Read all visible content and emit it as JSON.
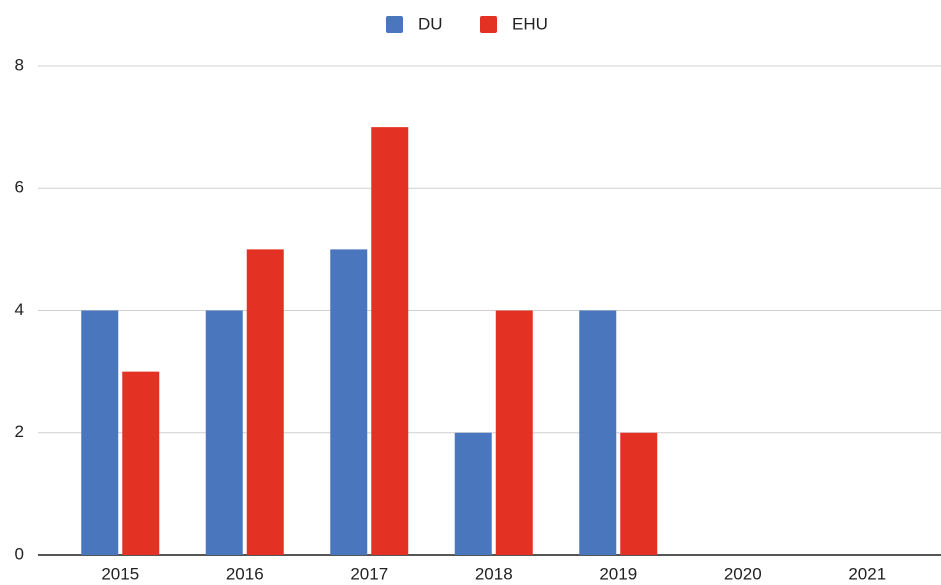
{
  "chart_data": {
    "type": "bar",
    "categories": [
      "2015",
      "2016",
      "2017",
      "2018",
      "2019",
      "2020",
      "2021"
    ],
    "series": [
      {
        "name": "DU",
        "color": "#4a76bd",
        "values": [
          4,
          4,
          5,
          2,
          4,
          null,
          null
        ]
      },
      {
        "name": "EHU",
        "color": "#e33224",
        "values": [
          3,
          5,
          7,
          4,
          2,
          null,
          null
        ]
      }
    ],
    "ylim": [
      0,
      8
    ],
    "yticks": [
      0,
      2,
      4,
      6,
      8
    ],
    "grid": true,
    "legend": "top"
  }
}
